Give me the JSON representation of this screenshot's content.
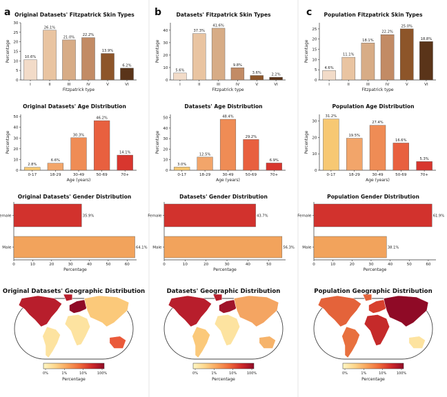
{
  "figure": {
    "panel_labels": [
      "a",
      "b",
      "c"
    ],
    "colors": {
      "skin": [
        "#f2dbc8",
        "#e9c4a1",
        "#d7ac86",
        "#c28b65",
        "#8d5529",
        "#5a3419"
      ],
      "age": [
        "#f7c873",
        "#f2a56a",
        "#ef8c55",
        "#e8603f",
        "#d8362e"
      ],
      "gender_female": "#d2322d",
      "gender_male": "#f2a35c",
      "map_scale": [
        "#fff7c4",
        "#fdd58a",
        "#f9a25b",
        "#ef6a3a",
        "#cf2a2a",
        "#8f0a26"
      ]
    }
  },
  "chart_data": [
    {
      "id": "a-skin",
      "type": "bar",
      "title": "Original Datasets' Fitzpatrick Skin Types",
      "categories": [
        "I",
        "II",
        "III",
        "IV",
        "V",
        "VI"
      ],
      "values": [
        10.6,
        26.1,
        21.0,
        22.2,
        13.9,
        6.2
      ],
      "labels": [
        "10.6%",
        "26.1%",
        "21.0%",
        "22.2%",
        "13.9%",
        "6.2%"
      ],
      "xlabel": "Fitzpatrick type",
      "ylabel": "Percentage",
      "ylim": [
        0,
        30
      ],
      "yticks": [
        0,
        5,
        10,
        15,
        20,
        25,
        30
      ]
    },
    {
      "id": "b-skin",
      "type": "bar",
      "title": "Datasets' Fitzpatrick Skin Types",
      "categories": [
        "I",
        "II",
        "III",
        "IV",
        "V",
        "VI"
      ],
      "values": [
        5.6,
        37.3,
        41.6,
        9.8,
        3.6,
        2.2
      ],
      "labels": [
        "5.6%",
        "37.3%",
        "41.6%",
        "9.8%",
        "3.6%",
        "2.2%"
      ],
      "xlabel": "Fitzpatrick type",
      "ylabel": "Percentage",
      "ylim": [
        0,
        46
      ],
      "yticks": [
        0,
        10,
        20,
        30,
        40
      ]
    },
    {
      "id": "c-skin",
      "type": "bar",
      "title": "Population Fitzpatrick Skin Types",
      "categories": [
        "I",
        "II",
        "III",
        "IV",
        "V",
        "VI"
      ],
      "values": [
        4.6,
        11.1,
        18.1,
        22.2,
        25.0,
        18.8
      ],
      "labels": [
        "4.6%",
        "11.1%",
        "18.1%",
        "22.2%",
        "25.0%",
        "18.8%"
      ],
      "xlabel": "Fitzpatrick type",
      "ylabel": "Percentage",
      "ylim": [
        0,
        28
      ],
      "yticks": [
        0,
        5,
        10,
        15,
        20,
        25
      ]
    },
    {
      "id": "a-age",
      "type": "bar",
      "title": "Original Datasets' Age Distribution",
      "categories": [
        "0-17",
        "18-29",
        "30-49",
        "50-69",
        "70+"
      ],
      "values": [
        2.8,
        6.6,
        30.3,
        46.2,
        14.1
      ],
      "labels": [
        "2.8%",
        "6.6%",
        "30.3%",
        "46.2%",
        "14.1%"
      ],
      "xlabel": "Age (years)",
      "ylabel": "Percentage",
      "ylim": [
        0,
        52
      ],
      "yticks": [
        0,
        10,
        20,
        30,
        40,
        50
      ]
    },
    {
      "id": "b-age",
      "type": "bar",
      "title": "Datasets' Age Distribution",
      "categories": [
        "0-17",
        "18-29",
        "30-49",
        "50-69",
        "70+"
      ],
      "values": [
        3.0,
        12.5,
        48.4,
        29.2,
        6.9
      ],
      "labels": [
        "3.0%",
        "12.5%",
        "48.4%",
        "29.2%",
        "6.9%"
      ],
      "xlabel": "Age (years)",
      "ylabel": "Percentage",
      "ylim": [
        0,
        53
      ],
      "yticks": [
        0,
        10,
        20,
        30,
        40,
        50
      ]
    },
    {
      "id": "c-age",
      "type": "bar",
      "title": "Population Age Distribution",
      "categories": [
        "0-17",
        "18-29",
        "30-49",
        "50-69",
        "70+"
      ],
      "values": [
        31.2,
        19.5,
        27.4,
        16.6,
        5.3
      ],
      "labels": [
        "31.2%",
        "19.5%",
        "27.4%",
        "16.6%",
        "5.3%"
      ],
      "xlabel": "Age (years)",
      "ylabel": "Percentage",
      "ylim": [
        0,
        34
      ],
      "yticks": [
        0,
        10,
        20,
        30
      ]
    },
    {
      "id": "a-gender",
      "type": "barh",
      "title": "Original Datasets' Gender Distribution",
      "categories": [
        "Female",
        "Male"
      ],
      "values": [
        35.9,
        64.1
      ],
      "labels": [
        "35.9%",
        "64.1%"
      ],
      "xlabel": "Percentage",
      "xlim": [
        0,
        65
      ],
      "xticks": [
        0,
        10,
        20,
        30,
        40,
        50,
        60
      ]
    },
    {
      "id": "b-gender",
      "type": "barh",
      "title": "Datasets' Gender Distribution",
      "categories": [
        "Female",
        "Male"
      ],
      "values": [
        43.7,
        56.3
      ],
      "labels": [
        "43.7%",
        "56.3%"
      ],
      "xlabel": "Percentage",
      "xlim": [
        0,
        58
      ],
      "xticks": [
        0,
        10,
        20,
        30,
        40,
        50
      ]
    },
    {
      "id": "c-gender",
      "type": "barh",
      "title": "Population Gender Distribution",
      "categories": [
        "Female",
        "Male"
      ],
      "values": [
        61.9,
        38.1
      ],
      "labels": [
        "61.9%",
        "38.1%"
      ],
      "xlabel": "Percentage",
      "xlim": [
        0,
        64
      ],
      "xticks": [
        0,
        10,
        20,
        30,
        40,
        50,
        60
      ]
    },
    {
      "id": "a-geo",
      "type": "choropleth",
      "title": "Original Datasets' Geographic Distribution",
      "colorbar_label": "Percentage",
      "colorbar_ticks": [
        "0%",
        "1%",
        "10%",
        "100%"
      ],
      "regions": {
        "north_america": "#b81e2c",
        "south_america": "#fde3a0",
        "europe": "#8f0a26",
        "africa": "#fde3a0",
        "asia": "#fbc97a",
        "australia": "#ea5a3a"
      }
    },
    {
      "id": "b-geo",
      "type": "choropleth",
      "title": "Datasets' Geographic Distribution",
      "colorbar_label": "Percentage",
      "colorbar_ticks": [
        "0%",
        "1%",
        "10%",
        "100%"
      ],
      "regions": {
        "north_america": "#b81e2c",
        "south_america": "#fbc97a",
        "europe": "#a0142a",
        "africa": "#fde3a0",
        "asia": "#f4a562",
        "australia": "#f6b36a"
      }
    },
    {
      "id": "c-geo",
      "type": "choropleth",
      "title": "Population Geographic Distribution",
      "colorbar_label": "Percentage",
      "colorbar_ticks": [
        "0%",
        "1%",
        "10%",
        "100%"
      ],
      "regions": {
        "north_america": "#e4633a",
        "south_america": "#e8703e",
        "europe": "#d8402e",
        "africa": "#c52a2a",
        "asia": "#8f0a26",
        "australia": "#fde3a0"
      }
    }
  ]
}
